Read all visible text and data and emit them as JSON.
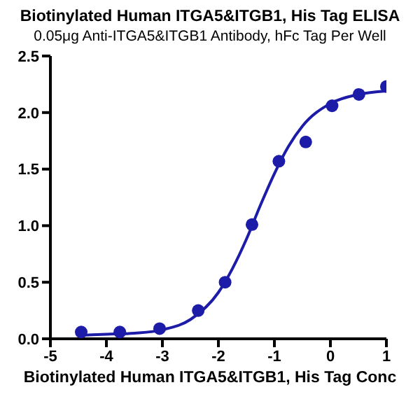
{
  "chart_data": {
    "type": "scatter",
    "title": "Biotinylated Human ITGA5&ITGB1, His Tag ELISA",
    "subtitle": "0.05μg Anti-ITGA5&ITGB1 Antibody, hFc Tag Per Well",
    "xlabel": "Biotinylated Human ITGA5&ITGB1, His Tag Conc",
    "xlim": [
      -5,
      1
    ],
    "xticks": [
      -5,
      -4,
      -3,
      -2,
      -1,
      0,
      1
    ],
    "ylim": [
      0,
      2.5
    ],
    "yticks": [
      {
        "value": 0,
        "label": "0.0"
      },
      {
        "value": 0.5,
        "label": "0.5"
      },
      {
        "value": 1,
        "label": "1.0"
      },
      {
        "value": 1.5,
        "label": "1.5"
      },
      {
        "value": 2,
        "label": "2.0"
      },
      {
        "value": 2.5,
        "label": "2.5"
      }
    ],
    "grid": false,
    "series": [
      {
        "type": "scatter",
        "marker": "circle",
        "color": "#1c1ca8",
        "x": [
          -4.45,
          -3.76,
          -3.05,
          -2.36,
          -1.88,
          -1.4,
          -0.92,
          -0.44,
          0.03,
          0.51,
          1.0
        ],
        "values": [
          0.06,
          0.06,
          0.09,
          0.25,
          0.5,
          1.01,
          1.57,
          1.74,
          2.06,
          2.16,
          2.23
        ]
      },
      {
        "type": "line",
        "marker": "none",
        "line_style": "solid",
        "color": "#1c1ca8",
        "x": [
          -4.5,
          -4,
          -3.5,
          -3,
          -2.5,
          -2,
          -1.75,
          -1.5,
          -1.25,
          -1,
          -0.75,
          -0.5,
          0,
          0.5,
          1
        ],
        "values": [
          0.03,
          0.04,
          0.05,
          0.08,
          0.17,
          0.41,
          0.62,
          0.88,
          1.18,
          1.46,
          1.7,
          1.88,
          2.08,
          2.16,
          2.19
        ]
      }
    ]
  }
}
